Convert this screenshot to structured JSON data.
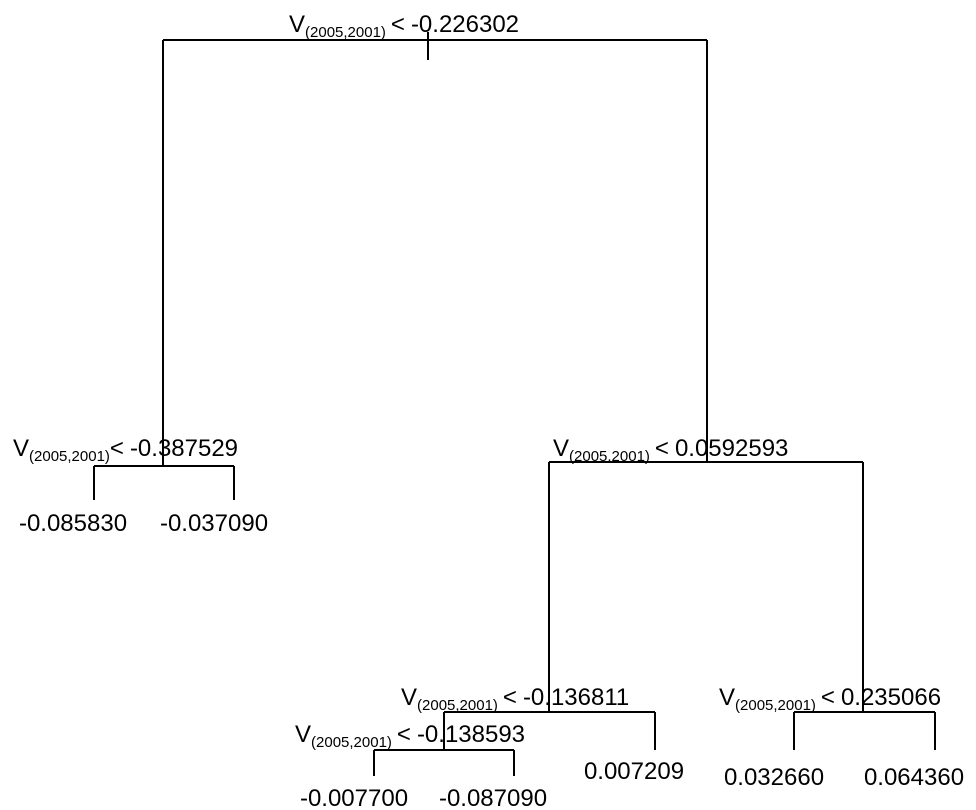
{
  "splits": [
    {
      "id": "root",
      "var": "V",
      "sub": "(2005,2001)",
      "op": "<",
      "threshold": "-0.226302"
    },
    {
      "id": "left",
      "var": "V",
      "sub": "(2005,2001)",
      "op": "<",
      "threshold": "-0.387529"
    },
    {
      "id": "right",
      "var": "V",
      "sub": "(2005,2001)",
      "op": "<",
      "threshold": "0.0592593"
    },
    {
      "id": "right_left",
      "var": "V",
      "sub": "(2005,2001)",
      "op": "<",
      "threshold": "-0.136811"
    },
    {
      "id": "right_right",
      "var": "V",
      "sub": "(2005,2001)",
      "op": "<",
      "threshold": "0.235066"
    },
    {
      "id": "right_left_left",
      "var": "V",
      "sub": "(2005,2001)",
      "op": "<",
      "threshold": "-0.138593"
    }
  ],
  "leaves": [
    {
      "id": "leaf_1",
      "value": "-0.085830"
    },
    {
      "id": "leaf_2",
      "value": "-0.037090"
    },
    {
      "id": "leaf_3",
      "value": "-0.007700"
    },
    {
      "id": "leaf_4",
      "value": "-0.087090"
    },
    {
      "id": "leaf_5",
      "value": "0.007209"
    },
    {
      "id": "leaf_6",
      "value": "0.032660"
    },
    {
      "id": "leaf_7",
      "value": "0.064360"
    }
  ]
}
